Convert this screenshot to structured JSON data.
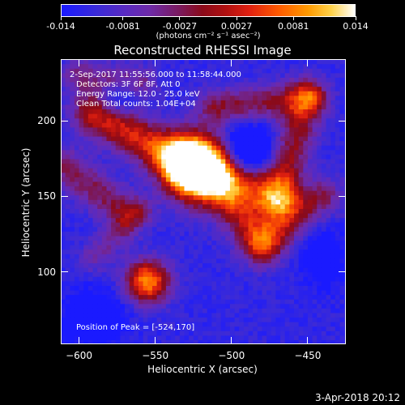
{
  "chart_data": {
    "type": "heatmap",
    "title": "Reconstructed RHESSI Image",
    "colorbar": {
      "ticks": [
        "-0.014",
        "-0.0081",
        "-0.0027",
        "0.0027",
        "0.0081",
        "0.014"
      ],
      "tick_values": [
        -0.014,
        -0.0081,
        -0.0027,
        0.0027,
        0.0081,
        0.014
      ],
      "range": [
        -0.014,
        0.014
      ],
      "unit_label": "(photons cm⁻² s⁻¹ asec⁻²)"
    },
    "xlabel": "Heliocentric X (arcsec)",
    "ylabel": "Heliocentric Y (arcsec)",
    "xlim": [
      -612,
      -425
    ],
    "ylim": [
      52,
      241
    ],
    "xticks": [
      -600,
      -550,
      -500,
      -450
    ],
    "yticks": [
      100,
      150,
      200
    ],
    "xtick_labels": [
      "−600",
      "−550",
      "−500",
      "−450"
    ],
    "ytick_labels": [
      "100",
      "150",
      "200"
    ],
    "annotations": [
      " 2-Sep-2017 11:55:56.000 to 11:58:44.000",
      "Detectors: 3F 6F 8F, Att 0",
      "Energy Range: 12.0 - 25.0 keV",
      "Clean    Total counts: 1.04E+04"
    ],
    "peak_label": "Position of Peak = [-524,170]",
    "peak_position": [
      -524,
      170
    ],
    "sources": [
      {
        "x": -524,
        "y": 170,
        "peak": 0.014
      },
      {
        "x": -555,
        "y": 94,
        "peak": 0.011
      }
    ]
  },
  "footer": {
    "date": "3-Apr-2018 20:12"
  }
}
